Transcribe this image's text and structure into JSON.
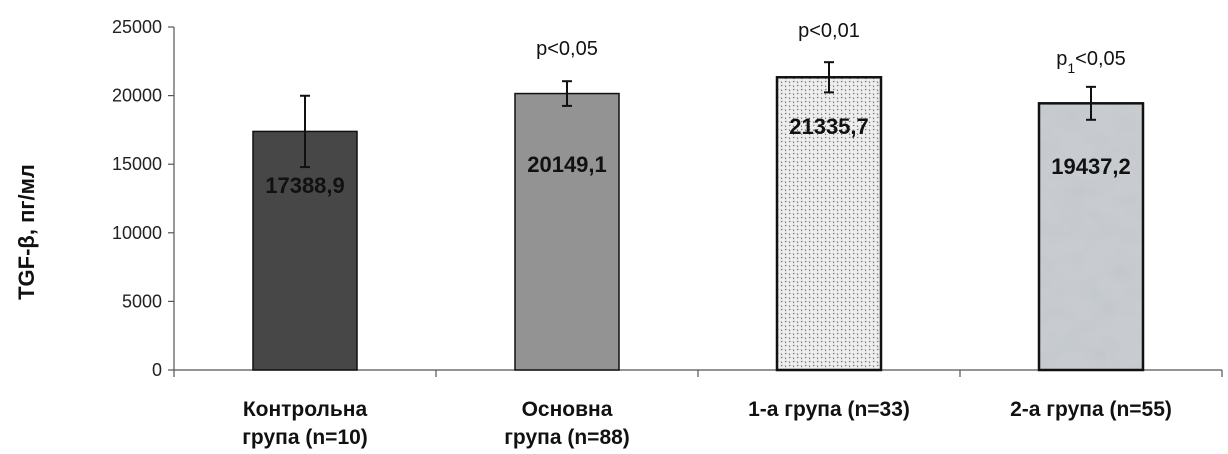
{
  "chart_data": {
    "type": "bar",
    "title": "",
    "xlabel": "",
    "ylabel": "TGF-β, пг/мл",
    "ylim": [
      0,
      25000
    ],
    "yticks": [
      0,
      5000,
      10000,
      15000,
      20000,
      25000
    ],
    "grid": false,
    "categories": [
      [
        "Контрольна",
        "група (n=10)"
      ],
      [
        "Основна",
        "група (n=88)"
      ],
      [
        "1-а група (n=33)"
      ],
      [
        "2-а група (n=55)"
      ]
    ],
    "values": [
      17388.9,
      20149.1,
      21335.7,
      19437.2
    ],
    "value_labels": [
      "17388,9",
      "20149,1",
      "21335,7",
      "19437,2"
    ],
    "error": [
      2600,
      900,
      1100,
      1200
    ],
    "annotations": [
      {
        "main": "",
        "sub": "",
        "rest": ""
      },
      {
        "main": "p<0,05",
        "sub": "",
        "rest": ""
      },
      {
        "main": "p<0,01",
        "sub": "",
        "rest": ""
      },
      {
        "main": "p",
        "sub": "1",
        "rest": "<0,05"
      }
    ],
    "bar_styles": [
      "solid-dark",
      "solid-gray",
      "dotted",
      "marble"
    ],
    "colors": {
      "dark": "#474747",
      "gray": "#939393",
      "dotted_bg": "#eeeeee",
      "dotted_fg": "#666666",
      "marble": "#c8ccd0",
      "axis": "#555555",
      "error": "#111111"
    }
  }
}
